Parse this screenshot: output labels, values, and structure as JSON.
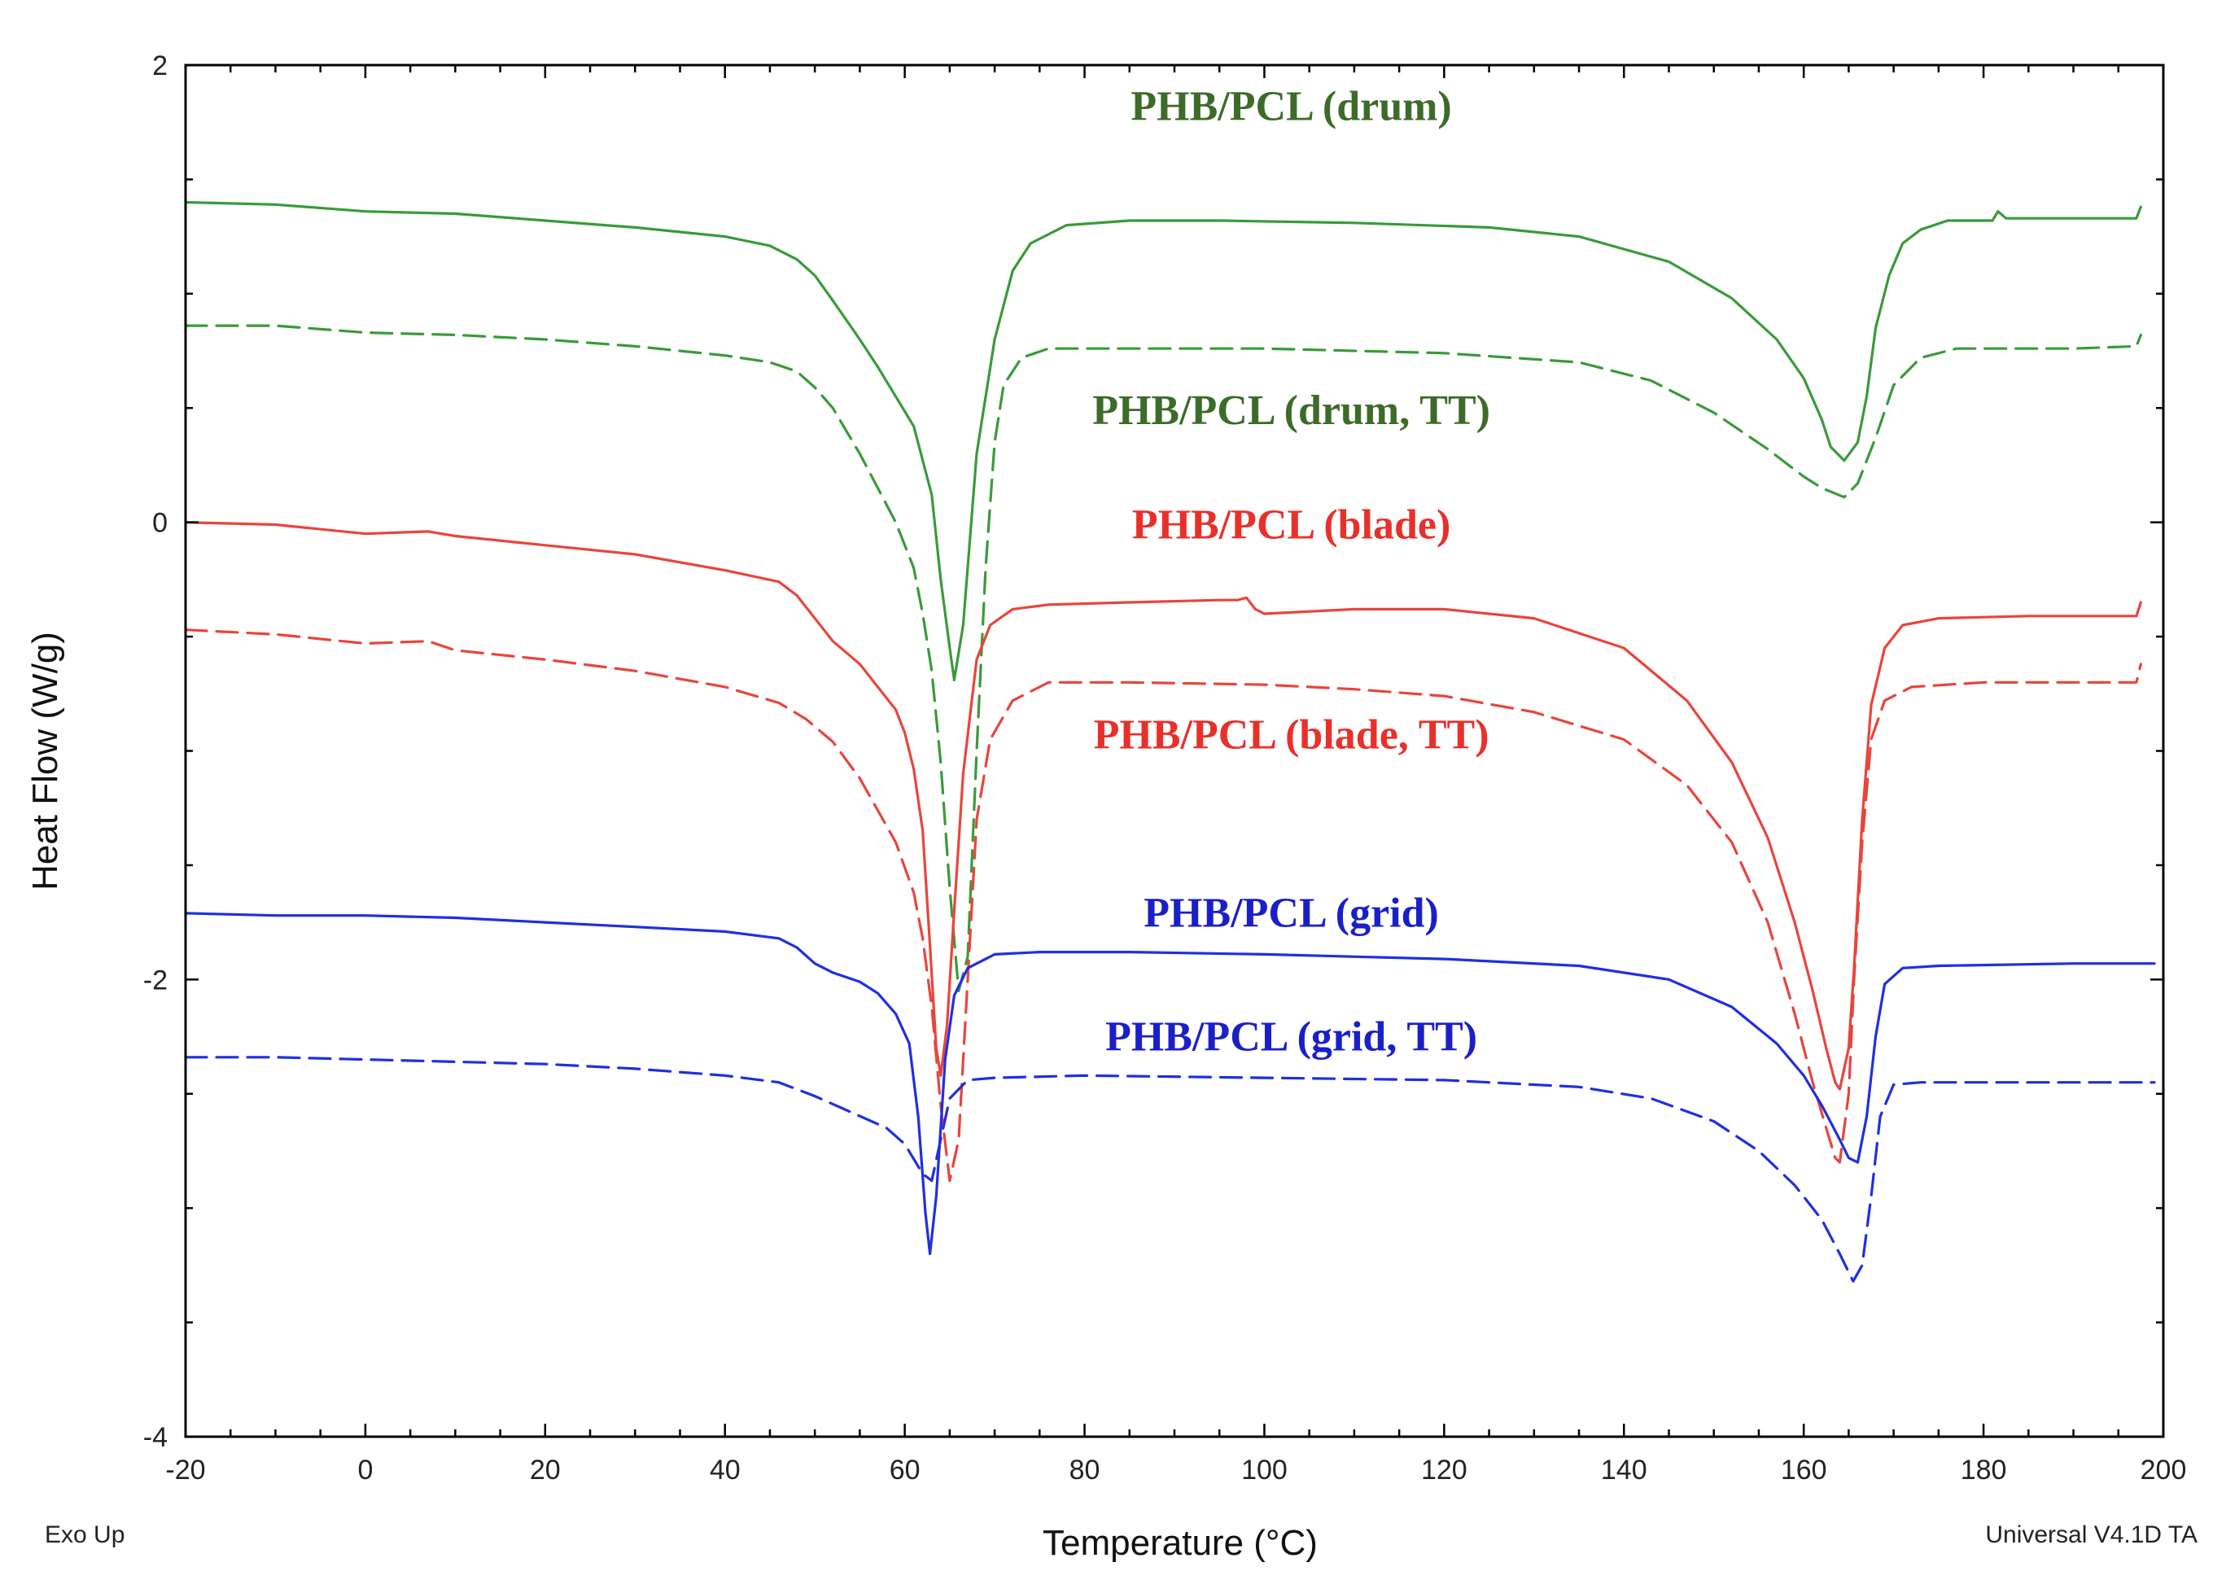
{
  "chart_data": {
    "type": "line",
    "title": "",
    "xlabel": "Temperature (°C)",
    "ylabel": "Heat Flow (W/g)",
    "xlim": [
      -20,
      200
    ],
    "ylim": [
      -4,
      2
    ],
    "xticks": [
      -20,
      0,
      20,
      40,
      60,
      80,
      100,
      120,
      140,
      160,
      180,
      200
    ],
    "yticks": [
      -4,
      -2,
      0,
      2
    ],
    "x_tick_labels": [
      "-20",
      "0",
      "20",
      "40",
      "60",
      "80",
      "100",
      "120",
      "140",
      "160",
      "180",
      "200"
    ],
    "y_tick_labels": [
      "-4",
      "-2",
      "0",
      "2"
    ],
    "notes": {
      "left": "Exo Up",
      "right": "Universal V4.1D TA"
    },
    "grid": false,
    "series": [
      {
        "name": "PHB/PCL (drum)",
        "color": "#3a9a3a",
        "label_color": "#3d6b2a",
        "style": "solid",
        "points": [
          [
            -20,
            1.4
          ],
          [
            -10,
            1.39
          ],
          [
            0,
            1.36
          ],
          [
            10,
            1.35
          ],
          [
            20,
            1.32
          ],
          [
            30,
            1.29
          ],
          [
            40,
            1.25
          ],
          [
            45,
            1.21
          ],
          [
            48,
            1.15
          ],
          [
            50,
            1.08
          ],
          [
            52,
            0.97
          ],
          [
            55,
            0.8
          ],
          [
            57,
            0.68
          ],
          [
            59,
            0.55
          ],
          [
            61,
            0.42
          ],
          [
            63,
            0.12
          ],
          [
            64,
            -0.25
          ],
          [
            65,
            -0.55
          ],
          [
            65.5,
            -0.69
          ],
          [
            66.5,
            -0.45
          ],
          [
            68,
            0.3
          ],
          [
            70,
            0.8
          ],
          [
            72,
            1.1
          ],
          [
            74,
            1.22
          ],
          [
            78,
            1.3
          ],
          [
            85,
            1.32
          ],
          [
            95,
            1.32
          ],
          [
            110,
            1.31
          ],
          [
            125,
            1.29
          ],
          [
            135,
            1.25
          ],
          [
            145,
            1.14
          ],
          [
            152,
            0.98
          ],
          [
            157,
            0.8
          ],
          [
            160,
            0.63
          ],
          [
            162,
            0.45
          ],
          [
            163,
            0.33
          ],
          [
            164.5,
            0.27
          ],
          [
            166,
            0.35
          ],
          [
            167,
            0.55
          ],
          [
            168,
            0.85
          ],
          [
            169.5,
            1.08
          ],
          [
            171,
            1.22
          ],
          [
            173,
            1.28
          ],
          [
            176,
            1.32
          ],
          [
            181,
            1.32
          ],
          [
            181.6,
            1.36
          ],
          [
            182.5,
            1.33
          ],
          [
            190,
            1.33
          ],
          [
            197,
            1.33
          ],
          [
            197.5,
            1.38
          ]
        ]
      },
      {
        "name": "PHB/PCL (drum, TT)",
        "color": "#3a9a3a",
        "label_color": "#3d6b2a",
        "style": "dashed",
        "points": [
          [
            -20,
            0.86
          ],
          [
            -10,
            0.86
          ],
          [
            0,
            0.83
          ],
          [
            10,
            0.82
          ],
          [
            20,
            0.8
          ],
          [
            30,
            0.77
          ],
          [
            40,
            0.73
          ],
          [
            45,
            0.7
          ],
          [
            48,
            0.66
          ],
          [
            50,
            0.59
          ],
          [
            52,
            0.5
          ],
          [
            55,
            0.3
          ],
          [
            57,
            0.15
          ],
          [
            59,
            0.0
          ],
          [
            61,
            -0.2
          ],
          [
            62,
            -0.4
          ],
          [
            63,
            -0.65
          ],
          [
            64,
            -1.05
          ],
          [
            65,
            -1.6
          ],
          [
            66,
            -2.05
          ],
          [
            67,
            -1.9
          ],
          [
            68,
            -1.0
          ],
          [
            69,
            -0.2
          ],
          [
            70,
            0.35
          ],
          [
            71,
            0.6
          ],
          [
            73,
            0.72
          ],
          [
            76,
            0.76
          ],
          [
            85,
            0.76
          ],
          [
            100,
            0.76
          ],
          [
            120,
            0.74
          ],
          [
            135,
            0.7
          ],
          [
            143,
            0.62
          ],
          [
            150,
            0.48
          ],
          [
            156,
            0.32
          ],
          [
            160,
            0.2
          ],
          [
            162,
            0.15
          ],
          [
            164.5,
            0.11
          ],
          [
            166,
            0.17
          ],
          [
            168,
            0.37
          ],
          [
            170,
            0.6
          ],
          [
            173,
            0.72
          ],
          [
            177,
            0.76
          ],
          [
            190,
            0.76
          ],
          [
            197,
            0.77
          ],
          [
            197.5,
            0.82
          ]
        ]
      },
      {
        "name": "PHB/PCL (blade)",
        "color": "#e8453c",
        "label_color": "#e8302a",
        "style": "solid",
        "points": [
          [
            -20,
            0.0
          ],
          [
            -10,
            -0.01
          ],
          [
            0,
            -0.05
          ],
          [
            7,
            -0.04
          ],
          [
            10,
            -0.06
          ],
          [
            20,
            -0.1
          ],
          [
            30,
            -0.14
          ],
          [
            40,
            -0.21
          ],
          [
            46,
            -0.26
          ],
          [
            48,
            -0.32
          ],
          [
            50,
            -0.42
          ],
          [
            52,
            -0.52
          ],
          [
            55,
            -0.62
          ],
          [
            57,
            -0.72
          ],
          [
            59,
            -0.82
          ],
          [
            60,
            -0.92
          ],
          [
            61,
            -1.08
          ],
          [
            62,
            -1.35
          ],
          [
            62.8,
            -1.85
          ],
          [
            63.5,
            -2.3
          ],
          [
            64,
            -2.42
          ],
          [
            64.7,
            -2.2
          ],
          [
            65.5,
            -1.7
          ],
          [
            66.5,
            -1.1
          ],
          [
            68,
            -0.6
          ],
          [
            69.5,
            -0.45
          ],
          [
            72,
            -0.38
          ],
          [
            76,
            -0.36
          ],
          [
            85,
            -0.35
          ],
          [
            95,
            -0.34
          ],
          [
            97,
            -0.34
          ],
          [
            98,
            -0.33
          ],
          [
            99,
            -0.38
          ],
          [
            100,
            -0.4
          ],
          [
            110,
            -0.38
          ],
          [
            120,
            -0.38
          ],
          [
            130,
            -0.42
          ],
          [
            140,
            -0.55
          ],
          [
            147,
            -0.78
          ],
          [
            152,
            -1.05
          ],
          [
            156,
            -1.38
          ],
          [
            159,
            -1.75
          ],
          [
            161,
            -2.05
          ],
          [
            162.5,
            -2.3
          ],
          [
            163.5,
            -2.45
          ],
          [
            164,
            -2.48
          ],
          [
            165,
            -2.3
          ],
          [
            165.6,
            -1.95
          ],
          [
            166.5,
            -1.3
          ],
          [
            167.5,
            -0.8
          ],
          [
            169,
            -0.55
          ],
          [
            171,
            -0.45
          ],
          [
            175,
            -0.42
          ],
          [
            185,
            -0.41
          ],
          [
            197,
            -0.41
          ],
          [
            197.5,
            -0.35
          ]
        ]
      },
      {
        "name": "PHB/PCL (blade, TT)",
        "color": "#e8453c",
        "label_color": "#e8302a",
        "style": "dashed",
        "points": [
          [
            -20,
            -0.47
          ],
          [
            -10,
            -0.49
          ],
          [
            0,
            -0.53
          ],
          [
            7,
            -0.52
          ],
          [
            10,
            -0.56
          ],
          [
            20,
            -0.6
          ],
          [
            30,
            -0.65
          ],
          [
            40,
            -0.72
          ],
          [
            46,
            -0.79
          ],
          [
            49,
            -0.86
          ],
          [
            52,
            -0.96
          ],
          [
            55,
            -1.12
          ],
          [
            57,
            -1.26
          ],
          [
            59,
            -1.4
          ],
          [
            61,
            -1.62
          ],
          [
            62,
            -1.82
          ],
          [
            63,
            -2.12
          ],
          [
            64,
            -2.55
          ],
          [
            65,
            -2.88
          ],
          [
            66,
            -2.7
          ],
          [
            67,
            -2.0
          ],
          [
            68,
            -1.3
          ],
          [
            69.5,
            -0.95
          ],
          [
            72,
            -0.78
          ],
          [
            76,
            -0.7
          ],
          [
            85,
            -0.7
          ],
          [
            100,
            -0.71
          ],
          [
            110,
            -0.73
          ],
          [
            120,
            -0.76
          ],
          [
            130,
            -0.83
          ],
          [
            140,
            -0.95
          ],
          [
            147,
            -1.15
          ],
          [
            152,
            -1.4
          ],
          [
            156,
            -1.75
          ],
          [
            159,
            -2.15
          ],
          [
            161,
            -2.45
          ],
          [
            162.5,
            -2.65
          ],
          [
            163.5,
            -2.78
          ],
          [
            164,
            -2.8
          ],
          [
            165,
            -2.5
          ],
          [
            165.6,
            -2.0
          ],
          [
            166.5,
            -1.4
          ],
          [
            167.5,
            -0.95
          ],
          [
            169,
            -0.78
          ],
          [
            172,
            -0.72
          ],
          [
            180,
            -0.7
          ],
          [
            197,
            -0.7
          ],
          [
            197.5,
            -0.62
          ]
        ]
      },
      {
        "name": "PHB/PCL (grid)",
        "color": "#1f2fe0",
        "label_color": "#1a1fc8",
        "style": "solid",
        "points": [
          [
            -20,
            -1.71
          ],
          [
            -10,
            -1.72
          ],
          [
            0,
            -1.72
          ],
          [
            10,
            -1.73
          ],
          [
            20,
            -1.75
          ],
          [
            30,
            -1.77
          ],
          [
            40,
            -1.79
          ],
          [
            46,
            -1.82
          ],
          [
            48,
            -1.86
          ],
          [
            50,
            -1.93
          ],
          [
            52,
            -1.97
          ],
          [
            55,
            -2.01
          ],
          [
            57,
            -2.06
          ],
          [
            59,
            -2.15
          ],
          [
            60.5,
            -2.28
          ],
          [
            61.5,
            -2.6
          ],
          [
            62.3,
            -3.02
          ],
          [
            62.8,
            -3.2
          ],
          [
            63.5,
            -2.95
          ],
          [
            64.5,
            -2.35
          ],
          [
            65.5,
            -2.07
          ],
          [
            67,
            -1.95
          ],
          [
            70,
            -1.89
          ],
          [
            75,
            -1.88
          ],
          [
            85,
            -1.88
          ],
          [
            100,
            -1.89
          ],
          [
            120,
            -1.91
          ],
          [
            135,
            -1.94
          ],
          [
            145,
            -2.0
          ],
          [
            152,
            -2.12
          ],
          [
            157,
            -2.28
          ],
          [
            160,
            -2.42
          ],
          [
            162,
            -2.55
          ],
          [
            164,
            -2.7
          ],
          [
            165,
            -2.78
          ],
          [
            166,
            -2.8
          ],
          [
            167,
            -2.6
          ],
          [
            168,
            -2.25
          ],
          [
            169,
            -2.02
          ],
          [
            171,
            -1.95
          ],
          [
            175,
            -1.94
          ],
          [
            190,
            -1.93
          ],
          [
            199,
            -1.93
          ]
        ]
      },
      {
        "name": "PHB/PCL (grid, TT)",
        "color": "#1f2fe0",
        "label_color": "#1a1fc8",
        "style": "dashed",
        "points": [
          [
            -20,
            -2.34
          ],
          [
            -10,
            -2.34
          ],
          [
            0,
            -2.35
          ],
          [
            10,
            -2.36
          ],
          [
            20,
            -2.37
          ],
          [
            30,
            -2.39
          ],
          [
            40,
            -2.42
          ],
          [
            46,
            -2.45
          ],
          [
            50,
            -2.51
          ],
          [
            54,
            -2.58
          ],
          [
            58,
            -2.65
          ],
          [
            60,
            -2.72
          ],
          [
            62,
            -2.85
          ],
          [
            63,
            -2.88
          ],
          [
            64,
            -2.7
          ],
          [
            65,
            -2.52
          ],
          [
            67,
            -2.44
          ],
          [
            70,
            -2.43
          ],
          [
            80,
            -2.42
          ],
          [
            100,
            -2.43
          ],
          [
            120,
            -2.44
          ],
          [
            135,
            -2.47
          ],
          [
            143,
            -2.52
          ],
          [
            150,
            -2.62
          ],
          [
            155,
            -2.75
          ],
          [
            159,
            -2.9
          ],
          [
            162,
            -3.05
          ],
          [
            164,
            -3.2
          ],
          [
            165.5,
            -3.32
          ],
          [
            166.5,
            -3.25
          ],
          [
            167.5,
            -2.95
          ],
          [
            168.5,
            -2.6
          ],
          [
            170,
            -2.46
          ],
          [
            173,
            -2.45
          ],
          [
            190,
            -2.45
          ],
          [
            199,
            -2.45
          ]
        ]
      }
    ]
  }
}
